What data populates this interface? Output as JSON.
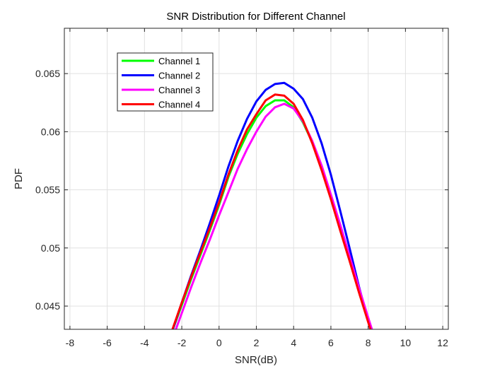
{
  "chart_data": {
    "type": "line",
    "title": "SNR Distribution for Different Channel",
    "xlabel": "SNR(dB)",
    "ylabel": "PDF",
    "xlim": [
      -8.3,
      12.3
    ],
    "ylim": [
      0.043,
      0.0689
    ],
    "xticks": [
      -8,
      -6,
      -4,
      -2,
      0,
      2,
      4,
      6,
      8,
      10,
      12
    ],
    "yticks": [
      0.045,
      0.05,
      0.055,
      0.06,
      0.065
    ],
    "ytick_labels": [
      "0.045",
      "0.05",
      "0.055",
      "0.06",
      "0.065"
    ],
    "grid": true,
    "legend_position": "top-left",
    "series": [
      {
        "name": "Channel 1",
        "color": "#00ff00",
        "x": [
          -2.5,
          -2,
          -1.5,
          -1,
          -0.5,
          0,
          0.5,
          1,
          1.5,
          2,
          2.5,
          3,
          3.5,
          4,
          4.5,
          5,
          5.5,
          6,
          6.5,
          7,
          7.5,
          8,
          8.5,
          8.8
        ],
        "y": [
          0.0429,
          0.0451,
          0.0473,
          0.0494,
          0.0515,
          0.0537,
          0.0561,
          0.0581,
          0.0598,
          0.0612,
          0.0622,
          0.0627,
          0.0627,
          0.0621,
          0.0608,
          0.0591,
          0.057,
          0.0545,
          0.0518,
          0.0491,
          0.0464,
          0.0438,
          0.0413,
          0.0398
        ]
      },
      {
        "name": "Channel 2",
        "color": "#0000ff",
        "x": [
          -2.5,
          -2,
          -1.5,
          -1,
          -0.5,
          0,
          0.5,
          1,
          1.5,
          2,
          2.5,
          3,
          3.5,
          4,
          4.5,
          5,
          5.5,
          6,
          6.5,
          7,
          7.5,
          8,
          8.5,
          8.8
        ],
        "y": [
          0.0429,
          0.0453,
          0.0476,
          0.0498,
          0.0521,
          0.0545,
          0.057,
          0.0592,
          0.0611,
          0.0626,
          0.0636,
          0.0641,
          0.0642,
          0.0637,
          0.0628,
          0.0612,
          0.059,
          0.0563,
          0.0532,
          0.05,
          0.0467,
          0.0437,
          0.0407,
          0.039
        ]
      },
      {
        "name": "Channel 3",
        "color": "#ff00ff",
        "x": [
          -2.5,
          -2,
          -1.5,
          -1,
          -0.5,
          0,
          0.5,
          1,
          1.5,
          2,
          2.5,
          3,
          3.5,
          4,
          4.5,
          5,
          5.5,
          6,
          6.5,
          7,
          7.5,
          8,
          8.5,
          9.0
        ],
        "y": [
          0.0422,
          0.0444,
          0.0466,
          0.0487,
          0.0507,
          0.0528,
          0.0548,
          0.0568,
          0.0585,
          0.06,
          0.0613,
          0.0621,
          0.0624,
          0.062,
          0.0609,
          0.0592,
          0.0571,
          0.0546,
          0.052,
          0.0493,
          0.0466,
          0.044,
          0.0415,
          0.039
        ]
      },
      {
        "name": "Channel 4",
        "color": "#ff0000",
        "x": [
          -2.5,
          -2,
          -1.5,
          -1,
          -0.5,
          0,
          0.5,
          1,
          1.5,
          2,
          2.5,
          3,
          3.5,
          4,
          4.5,
          5,
          5.5,
          6,
          6.5,
          7,
          7.5,
          8,
          8.5,
          8.8
        ],
        "y": [
          0.043,
          0.0453,
          0.0475,
          0.0496,
          0.0517,
          0.0539,
          0.0563,
          0.0584,
          0.0602,
          0.0615,
          0.0627,
          0.0632,
          0.0631,
          0.0624,
          0.061,
          0.059,
          0.0567,
          0.0542,
          0.0515,
          0.0489,
          0.0462,
          0.0436,
          0.0411,
          0.0395
        ]
      }
    ]
  }
}
